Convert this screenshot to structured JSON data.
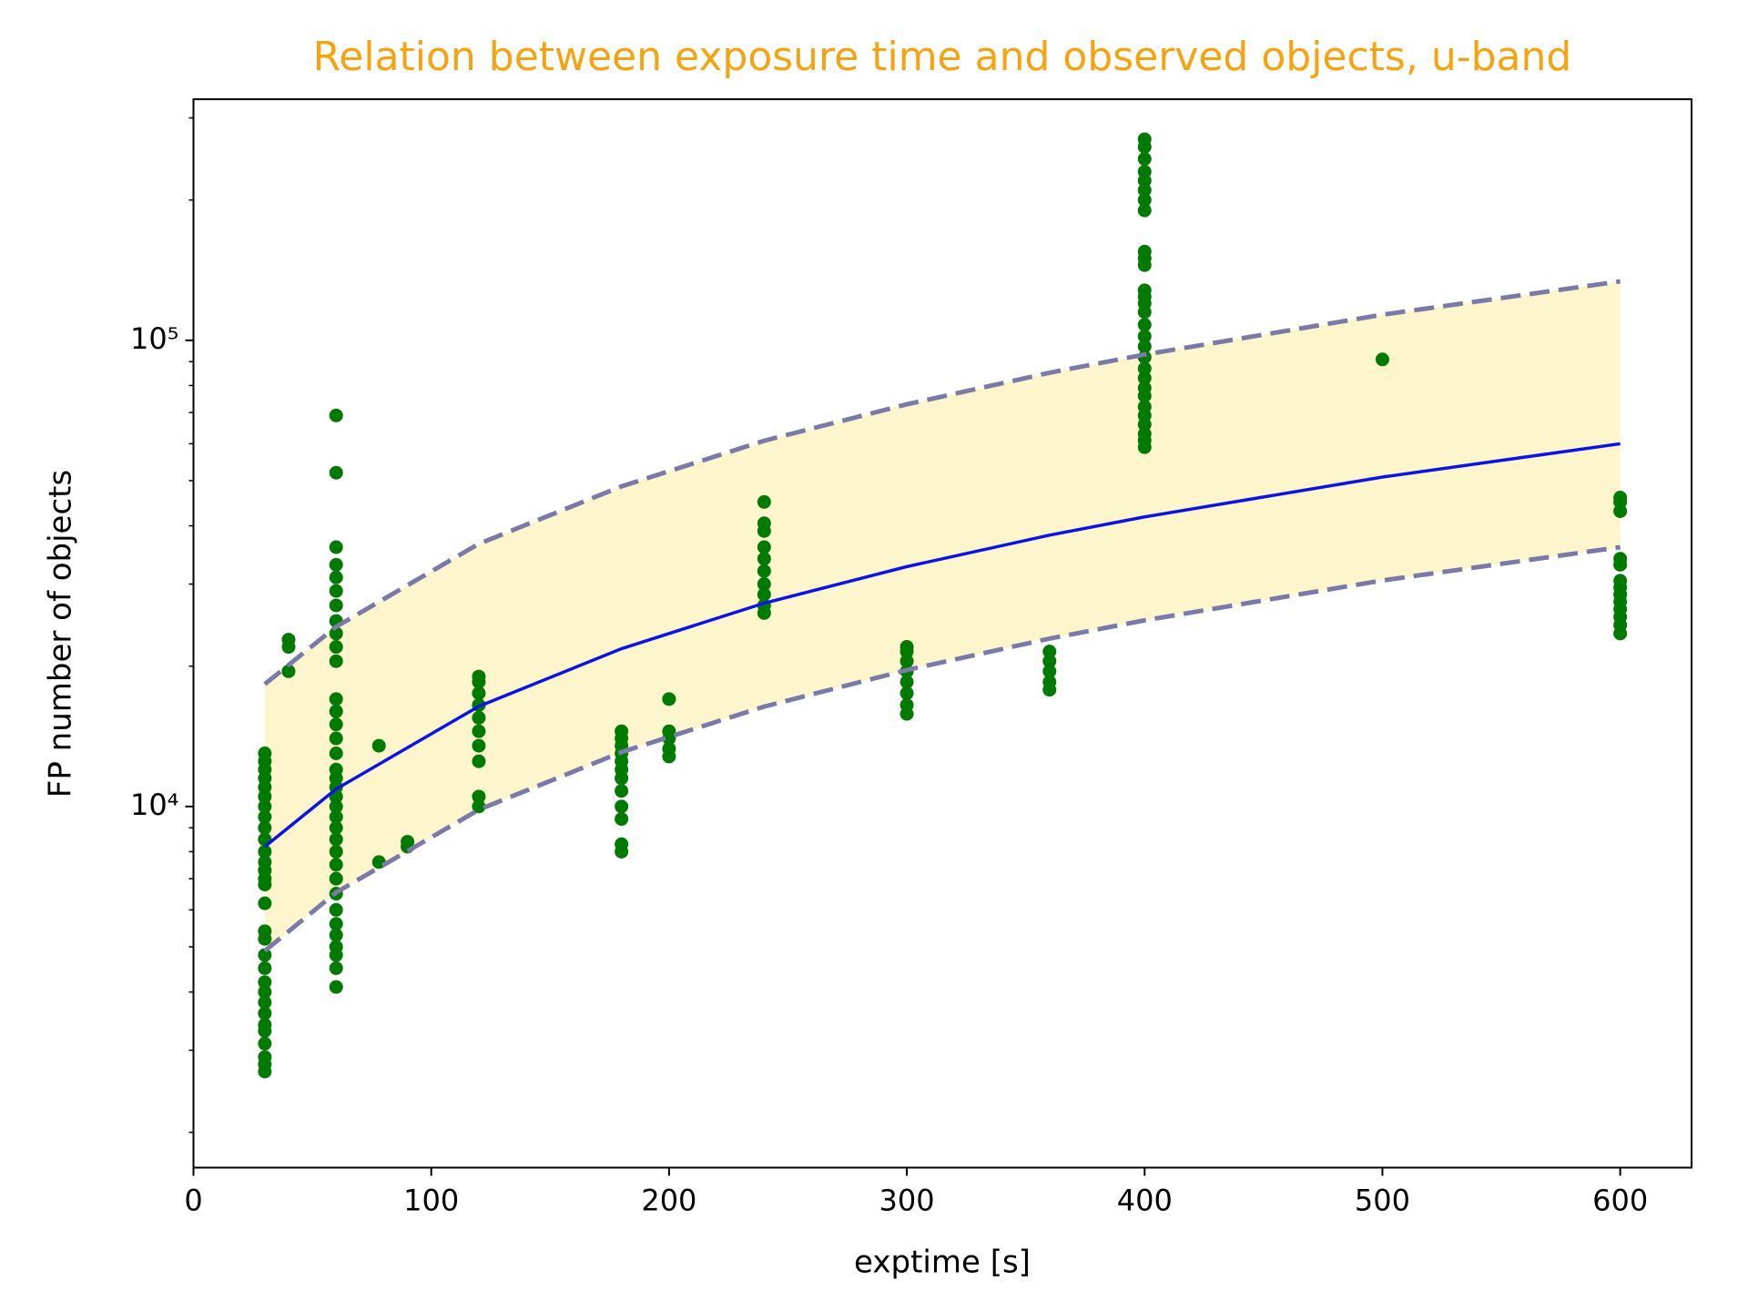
{
  "chart_data": {
    "type": "scatter",
    "title": "Relation between exposure time and observed objects, u-band",
    "title_color": "#f5a30f",
    "xlabel": "exptime [s]",
    "ylabel": "FP number of objects",
    "xlim": [
      0,
      630
    ],
    "ylim": [
      1680,
      329000
    ],
    "log_y": true,
    "xticks": [
      0,
      100,
      200,
      300,
      400,
      500,
      600
    ],
    "yticks": [
      {
        "value": 10000,
        "label": "10⁴"
      },
      {
        "value": 100000,
        "label": "10⁵"
      }
    ],
    "yminor_ticks": [
      2000,
      3000,
      4000,
      5000,
      6000,
      7000,
      8000,
      9000,
      20000,
      30000,
      40000,
      50000,
      60000,
      70000,
      80000,
      90000,
      200000,
      300000
    ],
    "band": {
      "x": [
        30,
        60,
        120,
        180,
        240,
        300,
        360,
        400,
        500,
        600
      ],
      "upper": [
        18300,
        24300,
        36600,
        48600,
        60900,
        72900,
        85200,
        93200,
        113500,
        133800
      ],
      "lower": [
        4900,
        6540,
        9840,
        13080,
        16380,
        19620,
        22920,
        25080,
        30540,
        36000
      ],
      "fill": "#fdf6cc",
      "edge_color": "#7a7aa8"
    },
    "fit": {
      "x": [
        30,
        60,
        120,
        180,
        240,
        300,
        360,
        400,
        500,
        600
      ],
      "values": [
        8200,
        10900,
        16400,
        21800,
        27300,
        32700,
        38200,
        41800,
        50900,
        60000
      ],
      "color": "#0a14e6"
    },
    "points": {
      "color": "#007a00",
      "x": [
        30,
        30,
        30,
        30,
        30,
        30,
        30,
        30,
        30,
        30,
        30,
        30,
        30,
        30,
        30,
        30,
        30,
        30,
        30,
        30,
        30,
        30,
        30,
        30,
        30,
        30,
        30,
        30,
        30,
        30,
        40,
        40,
        40,
        60,
        60,
        60,
        60,
        60,
        60,
        60,
        60,
        60,
        60,
        60,
        60,
        60,
        60,
        60,
        60,
        60,
        60,
        60,
        60,
        60,
        60,
        60,
        60,
        60,
        60,
        60,
        60,
        60,
        60,
        60,
        60,
        60,
        60,
        60,
        78,
        78,
        90,
        90,
        120,
        120,
        120,
        120,
        120,
        120,
        120,
        120,
        120,
        120,
        180,
        180,
        180,
        180,
        180,
        180,
        180,
        180,
        180,
        180,
        180,
        180,
        200,
        200,
        200,
        200,
        200,
        240,
        240,
        240,
        240,
        240,
        240,
        240,
        240,
        240,
        240,
        300,
        300,
        300,
        300,
        300,
        300,
        300,
        300,
        360,
        360,
        360,
        360,
        360,
        400,
        400,
        400,
        400,
        400,
        400,
        400,
        400,
        400,
        400,
        400,
        400,
        400,
        400,
        400,
        400,
        400,
        400,
        400,
        400,
        400,
        400,
        400,
        400,
        400,
        400,
        400,
        400,
        400,
        500,
        600,
        600,
        600,
        600,
        600,
        600,
        600,
        600,
        600,
        600,
        600,
        600,
        600
      ],
      "values": [
        2700,
        2800,
        2900,
        3100,
        3300,
        3400,
        3600,
        3800,
        4000,
        4200,
        4500,
        4800,
        5200,
        5400,
        6200,
        6800,
        7000,
        7300,
        7600,
        8000,
        8500,
        9000,
        9500,
        10000,
        10500,
        11000,
        11500,
        12000,
        12500,
        13000,
        19500,
        22000,
        22800,
        4100,
        4500,
        4800,
        5000,
        5300,
        5600,
        6000,
        6500,
        7000,
        7500,
        8000,
        8500,
        9000,
        9500,
        10000,
        10500,
        11000,
        11500,
        12000,
        13000,
        14000,
        15000,
        16000,
        17000,
        20500,
        22000,
        23500,
        25000,
        27000,
        29000,
        31000,
        33000,
        36000,
        52000,
        69000,
        7600,
        13500,
        8200,
        8400,
        10000,
        10500,
        12500,
        13500,
        14500,
        15500,
        16500,
        17500,
        18500,
        19000,
        8000,
        8300,
        9400,
        10000,
        10800,
        11500,
        12000,
        12500,
        13000,
        13500,
        14000,
        14500,
        12800,
        13300,
        14000,
        14500,
        17000,
        26000,
        27000,
        28500,
        30000,
        32000,
        34000,
        36000,
        39000,
        40500,
        45000,
        15800,
        16500,
        17500,
        18500,
        19500,
        20500,
        21500,
        22000,
        17800,
        18500,
        19500,
        20500,
        21500,
        59000,
        61000,
        63000,
        66000,
        69000,
        72000,
        76000,
        79000,
        83000,
        87000,
        92000,
        97000,
        102000,
        108000,
        115000,
        120000,
        124000,
        128000,
        145000,
        150000,
        155000,
        190000,
        200000,
        210000,
        220000,
        230000,
        245000,
        260000,
        270000,
        91000,
        23500,
        24500,
        25500,
        26500,
        27500,
        28500,
        29500,
        30500,
        33000,
        34000,
        43000,
        45000,
        46000
      ]
    }
  }
}
